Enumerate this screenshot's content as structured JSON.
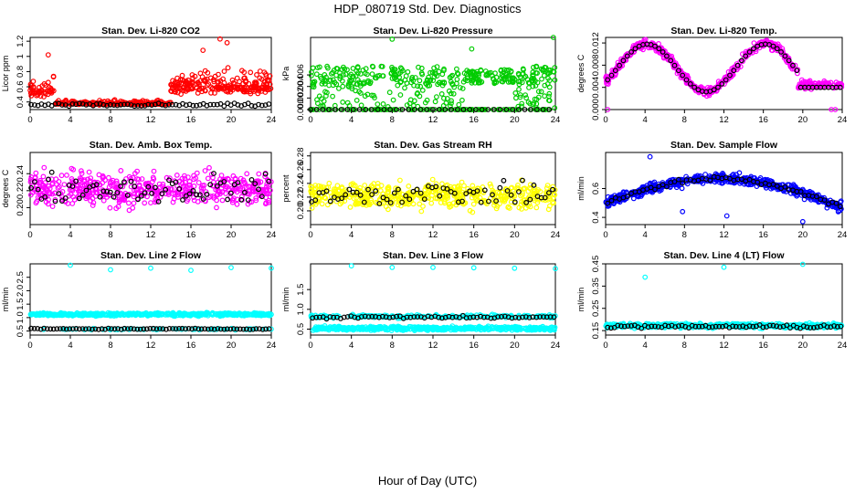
{
  "page_title": "HDP_080719  Std. Dev. Diagnostics",
  "xlabel": "Hour of Day (UTC)",
  "colors": {
    "red": "#ff0000",
    "green": "#00cc00",
    "magenta": "#ff00ff",
    "yellow": "#ffff00",
    "blue": "#0000ff",
    "cyan": "#00ffff",
    "black": "#000000"
  },
  "chart_data": [
    {
      "type": "scatter",
      "title": "Stan. Dev. Li-820 CO2",
      "ylabel": "Licor ppm",
      "xlim": [
        0,
        24
      ],
      "ylim": [
        0.3,
        1.25
      ],
      "xticks": [
        0,
        4,
        8,
        12,
        16,
        20,
        24
      ],
      "yticks": [
        0.4,
        0.6,
        0.8,
        1.0,
        1.2
      ],
      "ytick_labels": [
        "0.4",
        "0.6",
        "0.8",
        "1",
        "1.2"
      ],
      "series": [
        {
          "color": "red",
          "pattern": "co2"
        },
        {
          "color": "black",
          "pattern": "co2_black"
        }
      ]
    },
    {
      "type": "scatter",
      "title": "Stan. Dev. Li-820 Pressure",
      "ylabel": "kPa",
      "xlim": [
        0,
        24
      ],
      "ylim": [
        0.0,
        0.0125
      ],
      "xticks": [
        0,
        4,
        8,
        12,
        16,
        20,
        24
      ],
      "yticks": [
        0.0,
        0.002,
        0.004,
        0.006
      ],
      "ytick_labels": [
        "0.000",
        "0.002",
        "0.004",
        "0.006"
      ],
      "series": [
        {
          "color": "green",
          "pattern": "pressure"
        },
        {
          "color": "black",
          "pattern": "zero_line"
        }
      ]
    },
    {
      "type": "scatter",
      "title": "Stan. Dev. Li-820 Temp.",
      "ylabel": "degrees C",
      "xlim": [
        0,
        24
      ],
      "ylim": [
        0.0,
        0.013
      ],
      "xticks": [
        0,
        4,
        8,
        12,
        16,
        20,
        24
      ],
      "yticks": [
        0.0,
        0.004,
        0.008,
        0.012
      ],
      "ytick_labels": [
        "0.000",
        "0.004",
        "0.008",
        "0.012"
      ],
      "series": [
        {
          "color": "magenta",
          "pattern": "temp_wave"
        },
        {
          "color": "black",
          "pattern": "temp_wave_black"
        }
      ]
    },
    {
      "type": "scatter",
      "title": "Stan. Dev. Amb. Box Temp.",
      "ylabel": "degrees C",
      "xlim": [
        0,
        24
      ],
      "ylim": [
        0.18,
        0.265
      ],
      "xticks": [
        0,
        4,
        8,
        12,
        16,
        20,
        24
      ],
      "yticks": [
        0.2,
        0.22,
        0.24
      ],
      "ytick_labels": [
        "0.20",
        "0.22",
        "0.24"
      ],
      "series": [
        {
          "color": "magenta",
          "pattern": "box_temp"
        },
        {
          "color": "black",
          "pattern": "box_temp_black"
        }
      ]
    },
    {
      "type": "scatter",
      "title": "Stan. Dev. Gas Stream RH",
      "ylabel": "percent",
      "xlim": [
        0,
        24
      ],
      "ylim": [
        0.18,
        0.285
      ],
      "xticks": [
        0,
        4,
        8,
        12,
        16,
        20,
        24
      ],
      "yticks": [
        0.2,
        0.22,
        0.24,
        0.26,
        0.28
      ],
      "ytick_labels": [
        "0.20",
        "0.22",
        "0.24",
        "0.26",
        "0.28"
      ],
      "series": [
        {
          "color": "yellow",
          "pattern": "rh"
        },
        {
          "color": "black",
          "pattern": "rh_black"
        }
      ]
    },
    {
      "type": "scatter",
      "title": "Stan. Dev. Sample Flow",
      "ylabel": "ml/min",
      "xlim": [
        0,
        24
      ],
      "ylim": [
        0.35,
        0.85
      ],
      "xticks": [
        0,
        4,
        8,
        12,
        16,
        20,
        24
      ],
      "yticks": [
        0.4,
        0.6
      ],
      "ytick_labels": [
        "0.4",
        "0.6"
      ],
      "series": [
        {
          "color": "blue",
          "pattern": "sample_flow"
        },
        {
          "color": "black",
          "pattern": "sample_flow_black"
        }
      ]
    },
    {
      "type": "scatter",
      "title": "Stan. Dev. Line 2 Flow",
      "ylabel": "ml/min",
      "xlim": [
        0,
        24
      ],
      "ylim": [
        0.35,
        3.0
      ],
      "xticks": [
        0,
        4,
        8,
        12,
        16,
        20,
        24
      ],
      "yticks": [
        0.5,
        1.0,
        1.5,
        2.0,
        2.5
      ],
      "ytick_labels": [
        "0.5",
        "1.0",
        "1.5",
        "2.0",
        "2.5"
      ],
      "series": [
        {
          "color": "cyan",
          "pattern": "line2"
        },
        {
          "color": "black",
          "pattern": "line2_black"
        }
      ]
    },
    {
      "type": "scatter",
      "title": "Stan. Dev. Line 3 Flow",
      "ylabel": "ml/min",
      "xlim": [
        0,
        24
      ],
      "ylim": [
        0.35,
        2.15
      ],
      "xticks": [
        0,
        4,
        8,
        12,
        16,
        20,
        24
      ],
      "yticks": [
        0.5,
        1.0,
        1.5
      ],
      "ytick_labels": [
        "0.5",
        "1.0",
        "1.5"
      ],
      "series": [
        {
          "color": "cyan",
          "pattern": "line3"
        },
        {
          "color": "black",
          "pattern": "line3_black"
        }
      ]
    },
    {
      "type": "scatter",
      "title": "Stan. Dev. Line 4 (LT) Flow",
      "ylabel": "ml/min",
      "xlim": [
        0,
        24
      ],
      "ylim": [
        0.13,
        0.45
      ],
      "xticks": [
        0,
        4,
        8,
        12,
        16,
        20,
        24
      ],
      "yticks": [
        0.15,
        0.25,
        0.35,
        0.45
      ],
      "ytick_labels": [
        "0.15",
        "0.25",
        "0.35",
        "0.45"
      ],
      "series": [
        {
          "color": "cyan",
          "pattern": "line4"
        },
        {
          "color": "black",
          "pattern": "line4_black"
        }
      ]
    }
  ]
}
